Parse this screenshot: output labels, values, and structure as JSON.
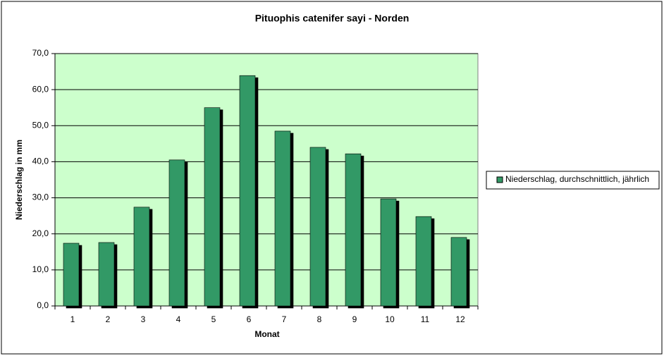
{
  "chart_data": {
    "type": "bar",
    "title": "Pituophis catenifer sayi - Norden",
    "x_label": "Monat",
    "y_label": "Niederschlag in mm",
    "categories": [
      "1",
      "2",
      "3",
      "4",
      "5",
      "6",
      "7",
      "8",
      "9",
      "10",
      "11",
      "12"
    ],
    "series": [
      {
        "name": "Niederschlag, durchschnittlich, jährlich",
        "color": "#339966",
        "values": [
          17.4,
          17.6,
          27.4,
          40.5,
          55.0,
          63.9,
          48.5,
          44.0,
          42.2,
          29.7,
          24.8,
          19.0
        ]
      }
    ],
    "ylim": [
      0,
      70
    ],
    "yticks": [
      {
        "value": 0,
        "label": "0,0"
      },
      {
        "value": 10,
        "label": "10,0"
      },
      {
        "value": 20,
        "label": "20,0"
      },
      {
        "value": 30,
        "label": "30,0"
      },
      {
        "value": 40,
        "label": "40,0"
      },
      {
        "value": 50,
        "label": "50,0"
      },
      {
        "value": 60,
        "label": "60,0"
      },
      {
        "value": 70,
        "label": "70,0"
      }
    ],
    "grid": true,
    "legend": "right",
    "plot_background": "#ccffcc"
  }
}
